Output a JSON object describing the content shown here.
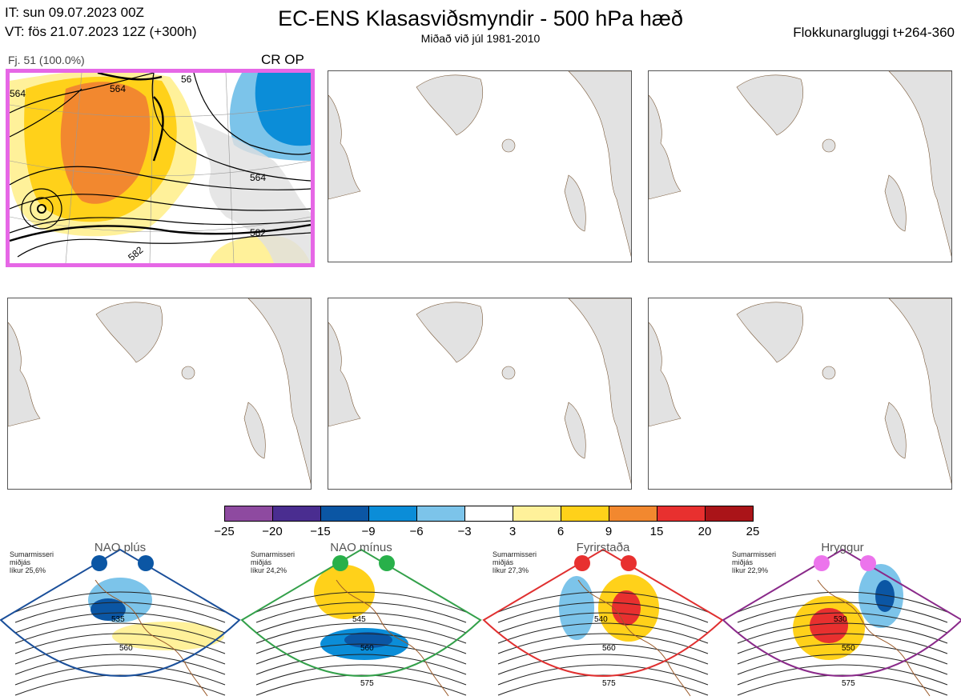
{
  "header": {
    "it_line": "IT: sun 09.07.2023 00Z",
    "vt_line": "VT: fös 21.07.2023 12Z  (+300h)",
    "title": "EC-ENS Klasasviðsmyndir - 500 hPa hæð",
    "subtitle": "Miðað við júl 1981-2010",
    "window_label": "Flokkunargluggi t+264-360"
  },
  "panels": {
    "first": {
      "member_label": "Fj. 51 (100.0%)",
      "cluster_label": "CR OP",
      "contour_labels": [
        "564",
        "56",
        "564",
        "582",
        "582",
        "564"
      ]
    }
  },
  "colorbar": {
    "ticks": [
      "−25",
      "−20",
      "−15",
      "−9",
      "−6",
      "−3",
      "3",
      "6",
      "9",
      "15",
      "20",
      "25"
    ],
    "colors": [
      "#8e4aa0",
      "#4a2d90",
      "#0b56a4",
      "#0b8dd8",
      "#7cc4ea",
      "#ffffff",
      "#fff19a",
      "#ffd11a",
      "#f2882f",
      "#e8302f",
      "#aa1418"
    ]
  },
  "regimes": [
    {
      "name": "NAO plús",
      "season": "Sumarmisseri",
      "date": "miðjás",
      "prob": "líkur 25,6%",
      "dot_color": "#0b56a4",
      "frame_color": "#1a4f9a",
      "labels": [
        "535",
        "560"
      ]
    },
    {
      "name": "NAO mínus",
      "season": "Sumarmisseri",
      "date": "miðjás",
      "prob": "líkur 24,2%",
      "dot_color": "#28b04a",
      "frame_color": "#33a04a",
      "labels": [
        "545",
        "560",
        "575"
      ]
    },
    {
      "name": "Fyrirstaða",
      "season": "Sumarmisseri",
      "date": "miðjás",
      "prob": "líkur 27,3%",
      "dot_color": "#e8302f",
      "frame_color": "#e03030",
      "labels": [
        "540",
        "560",
        "575"
      ]
    },
    {
      "name": "Hryggur",
      "season": "Sumarmisseri",
      "date": "miðjás",
      "prob": "líkur 22,9%",
      "dot_color": "#ec74ec",
      "frame_color": "#8a2a8a",
      "labels": [
        "530",
        "550",
        "575"
      ]
    }
  ]
}
